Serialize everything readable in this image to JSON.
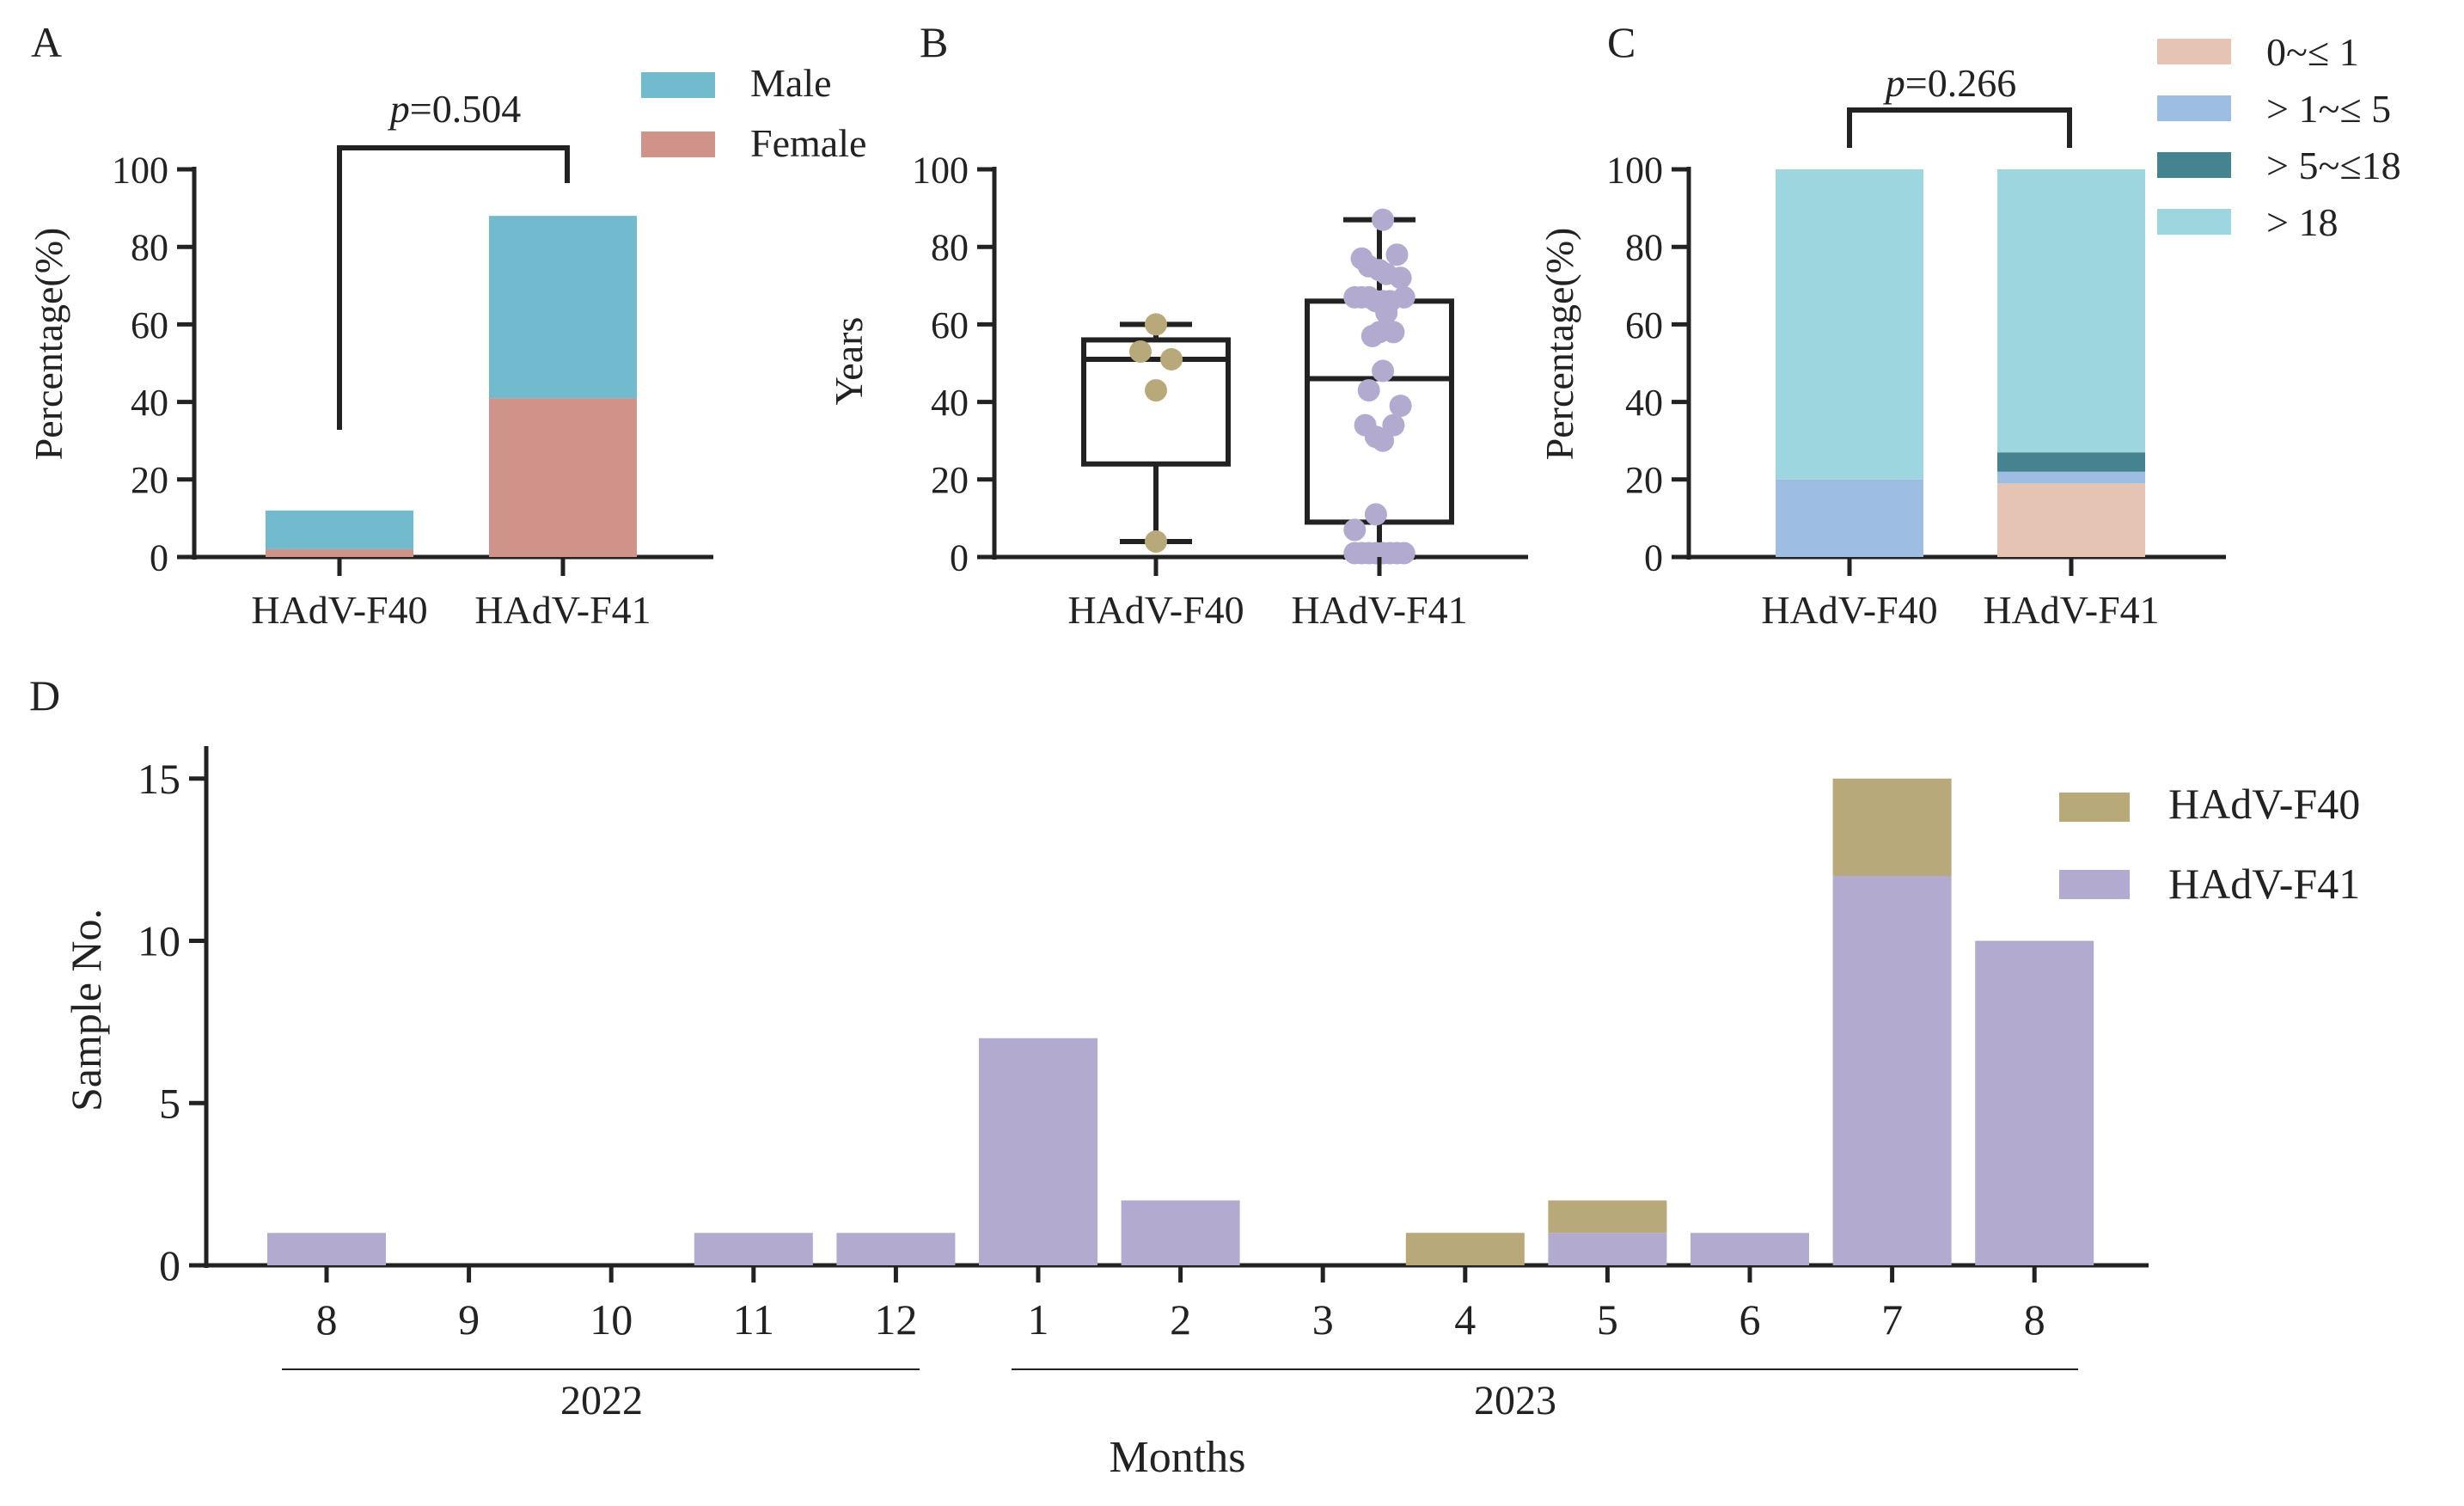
{
  "panels": {
    "A": {
      "letter": "A",
      "chart_type": "stacked-bar",
      "ylabel": "Percentage(%)",
      "ylim": [
        0,
        100
      ],
      "yticks": [
        0,
        20,
        40,
        60,
        80,
        100
      ],
      "categories": [
        "HAdV-F40",
        "HAdV-F41"
      ],
      "series": [
        {
          "name": "Female",
          "color": "#cf9389",
          "values": [
            2,
            41
          ]
        },
        {
          "name": "Male",
          "color": "#72bbcf",
          "values": [
            10,
            47
          ]
        }
      ],
      "legend": [
        "Male",
        "Female"
      ],
      "pvalue": {
        "p": "p",
        "rest": "=0.504"
      }
    },
    "B": {
      "letter": "B",
      "chart_type": "box-scatter",
      "ylabel": "Years",
      "ylim": [
        0,
        100
      ],
      "yticks": [
        0,
        20,
        40,
        60,
        80,
        100
      ],
      "categories": [
        "HAdV-F40",
        "HAdV-F41"
      ],
      "boxes": [
        {
          "name": "HAdV-F40",
          "min": 4,
          "q1": 24,
          "median": 51,
          "q3": 56,
          "max": 60,
          "color": "#b7a97a",
          "points": [
            [
              0,
              60
            ],
            [
              -0.22,
              53
            ],
            [
              0.22,
              51
            ],
            [
              0,
              43
            ],
            [
              0,
              4
            ]
          ]
        },
        {
          "name": "HAdV-F41",
          "min": 0,
          "q1": 9,
          "median": 46,
          "q3": 66,
          "max": 87,
          "color": "#b3abcf",
          "points": [
            [
              0.05,
              87
            ],
            [
              -0.25,
              77
            ],
            [
              -0.15,
              75
            ],
            [
              0.1,
              73
            ],
            [
              0.25,
              78
            ],
            [
              0.0,
              74
            ],
            [
              0.3,
              72
            ],
            [
              -0.35,
              67
            ],
            [
              -0.25,
              67
            ],
            [
              -0.15,
              67
            ],
            [
              -0.05,
              66
            ],
            [
              0.05,
              66
            ],
            [
              0.15,
              66
            ],
            [
              0.35,
              67
            ],
            [
              0.1,
              63
            ],
            [
              0.0,
              58
            ],
            [
              0.2,
              58
            ],
            [
              -0.1,
              57
            ],
            [
              0.05,
              48
            ],
            [
              -0.15,
              43
            ],
            [
              0.3,
              39
            ],
            [
              -0.2,
              34
            ],
            [
              0.2,
              34
            ],
            [
              -0.05,
              31
            ],
            [
              0.05,
              30
            ],
            [
              -0.05,
              11
            ],
            [
              -0.35,
              7
            ],
            [
              -0.35,
              1
            ],
            [
              -0.25,
              1
            ],
            [
              -0.15,
              1
            ],
            [
              -0.05,
              1
            ],
            [
              0.05,
              1
            ],
            [
              0.15,
              1
            ],
            [
              0.25,
              1
            ],
            [
              0.35,
              1
            ]
          ]
        }
      ]
    },
    "C": {
      "letter": "C",
      "chart_type": "stacked-bar",
      "ylabel": "Percentage(%)",
      "ylim": [
        0,
        100
      ],
      "yticks": [
        0,
        20,
        40,
        60,
        80,
        100
      ],
      "categories": [
        "HAdV-F40",
        "HAdV-F41"
      ],
      "series": [
        {
          "name": "0~≤1",
          "color": "#e6c4b3",
          "values": [
            0,
            19
          ]
        },
        {
          "name": ">1~≤5",
          "color": "#9dbde3",
          "values": [
            20,
            3
          ]
        },
        {
          "name": ">5~≤18",
          "color": "#44838f",
          "values": [
            0,
            5
          ]
        },
        {
          "name": ">18",
          "color": "#9ed6e0",
          "values": [
            80,
            73
          ]
        }
      ],
      "legend": [
        "0~≤ 1",
        "> 1~≤ 5",
        "> 5~≤18",
        "> 18"
      ],
      "pvalue": {
        "p": "p",
        "rest": "=0.266"
      }
    },
    "D": {
      "letter": "D",
      "chart_type": "stacked-bar",
      "ylabel": "Sample No.",
      "xlabel": "Months",
      "ylim": [
        0,
        16
      ],
      "yticks": [
        0,
        5,
        10,
        15
      ],
      "categories": [
        "8",
        "9",
        "10",
        "11",
        "12",
        "1",
        "2",
        "3",
        "4",
        "5",
        "6",
        "7",
        "8"
      ],
      "year_labels": [
        "2022",
        "2023"
      ],
      "series": [
        {
          "name": "HAdV-F41",
          "color": "#b3abcf",
          "values": [
            1,
            0,
            0,
            1,
            1,
            7,
            2,
            0,
            0,
            1,
            1,
            12,
            10
          ]
        },
        {
          "name": "HAdV-F40",
          "color": "#b7a97a",
          "values": [
            0,
            0,
            0,
            0,
            0,
            0,
            0,
            0,
            1,
            1,
            0,
            3,
            0
          ]
        }
      ],
      "legend": [
        "HAdV-F40",
        "HAdV-F41"
      ]
    }
  },
  "chart_data": [
    {
      "type": "bar",
      "stacked": true,
      "title": "A",
      "categories": [
        "HAdV-F40",
        "HAdV-F41"
      ],
      "series": [
        {
          "name": "Female",
          "values": [
            2,
            41
          ]
        },
        {
          "name": "Male",
          "values": [
            10,
            47
          ]
        }
      ],
      "xlabel": "",
      "ylabel": "Percentage(%)",
      "ylim": [
        0,
        100
      ],
      "annotations": [
        "p=0.504"
      ]
    },
    {
      "type": "box",
      "title": "B",
      "categories": [
        "HAdV-F40",
        "HAdV-F41"
      ],
      "series": [
        {
          "name": "HAdV-F40",
          "min": 4,
          "q1": 24,
          "median": 51,
          "q3": 56,
          "max": 60,
          "points": [
            60,
            53,
            51,
            43,
            4
          ]
        },
        {
          "name": "HAdV-F41",
          "min": 0,
          "q1": 9,
          "median": 46,
          "q3": 66,
          "max": 87,
          "points": [
            87,
            77,
            75,
            73,
            78,
            74,
            72,
            67,
            67,
            67,
            66,
            66,
            66,
            67,
            63,
            58,
            58,
            57,
            48,
            43,
            39,
            34,
            34,
            31,
            30,
            11,
            7,
            1,
            1,
            1,
            1,
            1,
            1,
            1,
            1
          ]
        }
      ],
      "xlabel": "",
      "ylabel": "Years",
      "ylim": [
        0,
        100
      ]
    },
    {
      "type": "bar",
      "stacked": true,
      "title": "C",
      "categories": [
        "HAdV-F40",
        "HAdV-F41"
      ],
      "series": [
        {
          "name": "0~≤1",
          "values": [
            0,
            19
          ]
        },
        {
          "name": ">1~≤5",
          "values": [
            20,
            3
          ]
        },
        {
          "name": ">5~≤18",
          "values": [
            0,
            5
          ]
        },
        {
          "name": ">18",
          "values": [
            80,
            73
          ]
        }
      ],
      "xlabel": "",
      "ylabel": "Percentage(%)",
      "ylim": [
        0,
        100
      ],
      "annotations": [
        "p=0.266"
      ]
    },
    {
      "type": "bar",
      "stacked": true,
      "title": "D",
      "categories": [
        "8",
        "9",
        "10",
        "11",
        "12",
        "1",
        "2",
        "3",
        "4",
        "5",
        "6",
        "7",
        "8"
      ],
      "series": [
        {
          "name": "HAdV-F41",
          "values": [
            1,
            0,
            0,
            1,
            1,
            7,
            2,
            0,
            0,
            1,
            1,
            12,
            10
          ]
        },
        {
          "name": "HAdV-F40",
          "values": [
            0,
            0,
            0,
            0,
            0,
            0,
            0,
            0,
            1,
            1,
            0,
            3,
            0
          ]
        }
      ],
      "xlabel": "Months",
      "ylabel": "Sample No.",
      "ylim": [
        0,
        16
      ],
      "annotations": [
        "2022",
        "2023"
      ]
    }
  ]
}
